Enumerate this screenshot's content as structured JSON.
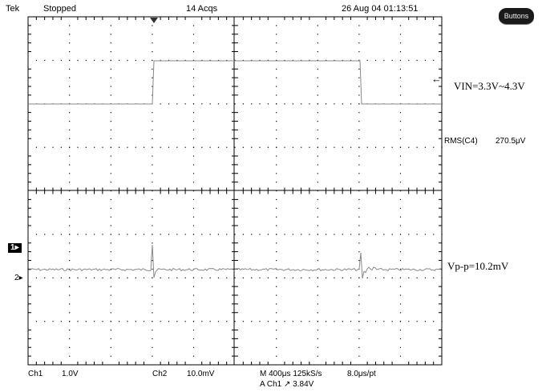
{
  "header": {
    "brand": "Tek",
    "status": "Stopped",
    "acqs": "14 Acqs",
    "datetime": "26 Aug 04 01:13:51",
    "buttons_label": "Buttons"
  },
  "annotations": {
    "vin": "VIN=3.3V~4.3V",
    "rms_label": "RMS(C4)",
    "rms_value": "270.5μV",
    "vpp": "Vp-p=10.2mV"
  },
  "markers": {
    "ch1": "1",
    "ch2": "2",
    "arrow": "←"
  },
  "footer": {
    "ch1_label": "Ch1",
    "ch1_scale": "1.0V",
    "ch2_label": "Ch2",
    "ch2_scale": "10.0mV",
    "timebase": "M 400μs 125kS/s",
    "sample": "8.0μs/pt",
    "trigger": "A Ch1 ↗ 3.84V"
  },
  "colors": {
    "grid": "#000000",
    "trace": "#888888"
  }
}
